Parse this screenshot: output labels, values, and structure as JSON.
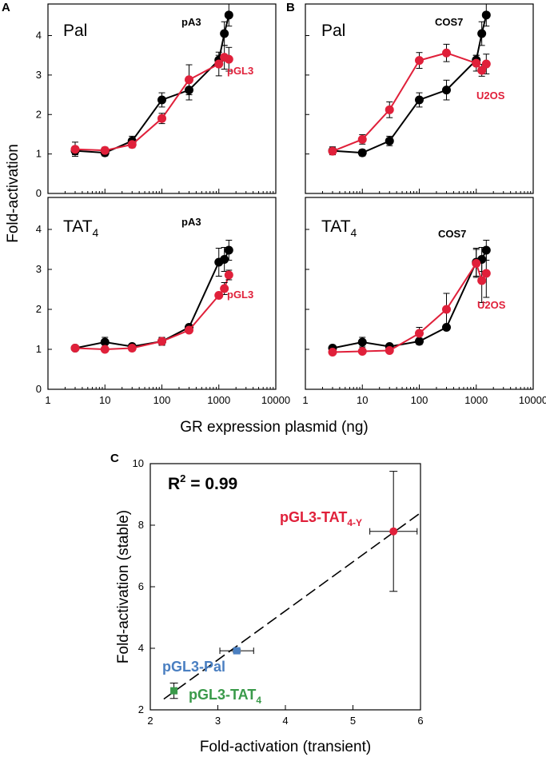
{
  "colors": {
    "black": "#000000",
    "red": "#e0203a",
    "blue": "#4a7fc1",
    "green": "#3a9a4a"
  },
  "shared": {
    "ylabel_top": "Fold-activation",
    "xlabel_top": "GR expression plasmid (ng)",
    "xticks": [
      "1",
      "10",
      "100",
      "1000",
      "10000"
    ],
    "yticks": [
      "0",
      "1",
      "2",
      "3",
      "4"
    ]
  },
  "chart_data": [
    {
      "id": "A-top",
      "panel_letter": "A",
      "title": "Pal",
      "type": "line",
      "x_scale": "log",
      "xlim": [
        1,
        10000
      ],
      "ylim": [
        0,
        4.8
      ],
      "series": [
        {
          "name": "pA3",
          "color": "black",
          "x": [
            3,
            10,
            30,
            100,
            300,
            1000,
            1250,
            1500
          ],
          "values": [
            1.08,
            1.03,
            1.33,
            2.37,
            2.62,
            3.38,
            4.05,
            4.52
          ],
          "err": [
            0.1,
            0.08,
            0.12,
            0.18,
            0.25,
            0.12,
            0.3,
            0.28
          ]
        },
        {
          "name": "pGL3",
          "color": "red",
          "x": [
            3,
            10,
            30,
            100,
            300,
            1000,
            1250,
            1500
          ],
          "values": [
            1.12,
            1.09,
            1.24,
            1.9,
            2.88,
            3.28,
            3.45,
            3.4
          ],
          "err": [
            0.18,
            0.08,
            0.08,
            0.13,
            0.38,
            0.3,
            0.3,
            0.3
          ]
        }
      ]
    },
    {
      "id": "B-top",
      "panel_letter": "B",
      "title": "Pal",
      "type": "line",
      "x_scale": "log",
      "xlim": [
        1,
        10000
      ],
      "ylim": [
        0,
        4.8
      ],
      "series": [
        {
          "name": "COS7",
          "color": "black",
          "x": [
            3,
            10,
            30,
            100,
            300,
            1000,
            1250,
            1500
          ],
          "values": [
            1.08,
            1.03,
            1.33,
            2.37,
            2.62,
            3.38,
            4.05,
            4.52
          ],
          "err": [
            0.1,
            0.08,
            0.12,
            0.18,
            0.25,
            0.12,
            0.3,
            0.28
          ]
        },
        {
          "name": "U2OS",
          "color": "red",
          "x": [
            3,
            10,
            30,
            100,
            300,
            1000,
            1250,
            1500
          ],
          "values": [
            1.07,
            1.37,
            2.12,
            3.37,
            3.56,
            3.3,
            3.12,
            3.28
          ],
          "err": [
            0.06,
            0.12,
            0.2,
            0.2,
            0.22,
            0.2,
            0.15,
            0.25
          ]
        }
      ]
    },
    {
      "id": "A-bottom",
      "panel_letter": "",
      "title": "TAT",
      "title_sub": "4",
      "type": "line",
      "x_scale": "log",
      "xlim": [
        1,
        10000
      ],
      "ylim": [
        0,
        4.8
      ],
      "series": [
        {
          "name": "pA3",
          "color": "black",
          "x": [
            3,
            10,
            30,
            100,
            300,
            1000,
            1250,
            1500
          ],
          "values": [
            1.03,
            1.18,
            1.07,
            1.2,
            1.55,
            3.18,
            3.25,
            3.48
          ],
          "err": [
            0.06,
            0.12,
            0.05,
            0.08,
            0.07,
            0.35,
            0.3,
            0.25
          ]
        },
        {
          "name": "pGL3",
          "color": "red",
          "x": [
            3,
            10,
            30,
            100,
            300,
            1000,
            1250,
            1500
          ],
          "values": [
            1.03,
            1.0,
            1.03,
            1.2,
            1.48,
            2.35,
            2.52,
            2.86
          ],
          "err": [
            0.05,
            0.05,
            0.07,
            0.1,
            0.05,
            0.05,
            0.15,
            0.12
          ]
        }
      ]
    },
    {
      "id": "B-bottom",
      "panel_letter": "",
      "title": "TAT",
      "title_sub": "4",
      "type": "line",
      "x_scale": "log",
      "xlim": [
        1,
        10000
      ],
      "ylim": [
        0,
        4.8
      ],
      "series": [
        {
          "name": "COS7",
          "color": "black",
          "x": [
            3,
            10,
            30,
            100,
            300,
            1000,
            1250,
            1500
          ],
          "values": [
            1.03,
            1.18,
            1.07,
            1.2,
            1.55,
            3.18,
            3.25,
            3.48
          ],
          "err": [
            0.06,
            0.12,
            0.05,
            0.08,
            0.07,
            0.35,
            0.3,
            0.25
          ]
        },
        {
          "name": "U2OS",
          "color": "red",
          "x": [
            3,
            10,
            30,
            100,
            300,
            1000,
            1250,
            1500
          ],
          "values": [
            0.93,
            0.95,
            0.97,
            1.4,
            2.0,
            3.15,
            2.72,
            2.9
          ],
          "err": [
            0.05,
            0.05,
            0.05,
            0.15,
            0.4,
            0.35,
            0.55,
            0.6
          ]
        }
      ]
    },
    {
      "id": "C",
      "panel_letter": "C",
      "type": "scatter",
      "xlabel": "Fold-activation (transient)",
      "ylabel": "Fold-activation (stable)",
      "xlim": [
        2,
        6
      ],
      "ylim": [
        2,
        10
      ],
      "xticks": [
        "2",
        "3",
        "4",
        "5",
        "6"
      ],
      "yticks": [
        "2",
        "4",
        "6",
        "8",
        "10"
      ],
      "annotation": "R",
      "annotation_sup": "2",
      "annotation_rest": " = 0.99",
      "fit_line": {
        "x": [
          2.2,
          6.0
        ],
        "y": [
          2.35,
          8.4
        ]
      },
      "points": [
        {
          "name": "pGL3-TAT",
          "sub": "4",
          "color": "green",
          "x": 2.35,
          "y": 2.62,
          "xerr": 0.03,
          "yerr": 0.25
        },
        {
          "name": "pGL3-Pal",
          "sub": "",
          "color": "blue",
          "x": 3.28,
          "y": 3.92,
          "xerr": 0.25,
          "yerr": 0.05
        },
        {
          "name": "pGL3-TAT",
          "sub": "4-Y",
          "color": "red",
          "x": 5.6,
          "y": 7.8,
          "xerr": 0.35,
          "yerr": 1.95
        }
      ]
    }
  ]
}
